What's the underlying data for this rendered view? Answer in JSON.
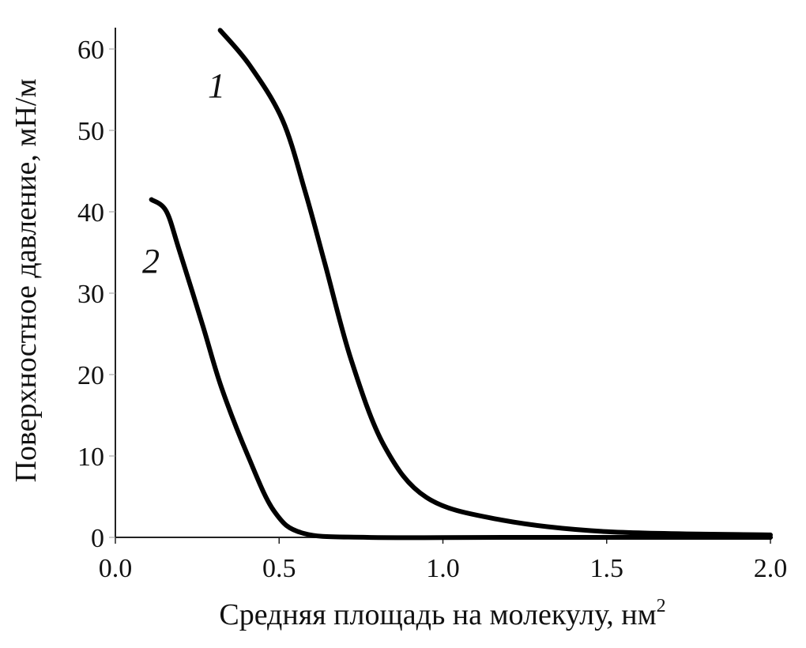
{
  "chart_data": {
    "type": "line",
    "xlabel": "Средняя площадь на молекулу, нм",
    "xlabel_sup": "2",
    "ylabel": "Поверхностное давление, мН/м",
    "xlim": [
      0,
      2.0
    ],
    "ylim": [
      0,
      62
    ],
    "grid": false,
    "x_ticks": [
      "0.0",
      "0.5",
      "1.0",
      "1.5",
      "2.0"
    ],
    "y_ticks": [
      "0",
      "10",
      "20",
      "30",
      "40",
      "50",
      "60"
    ],
    "line_color": "#000000",
    "series": [
      {
        "name": "1",
        "points": [
          [
            0.32,
            62.3
          ],
          [
            0.41,
            58.0
          ],
          [
            0.51,
            51.3
          ],
          [
            0.58,
            42.4
          ],
          [
            0.64,
            33.6
          ],
          [
            0.72,
            21.8
          ],
          [
            0.82,
            11.3
          ],
          [
            0.95,
            4.9
          ],
          [
            1.17,
            2.2
          ],
          [
            1.5,
            0.7
          ],
          [
            2.0,
            0.3
          ]
        ]
      },
      {
        "name": "2",
        "points": [
          [
            0.11,
            41.5
          ],
          [
            0.155,
            40.1
          ],
          [
            0.195,
            35.3
          ],
          [
            0.267,
            26.0
          ],
          [
            0.324,
            18.4
          ],
          [
            0.405,
            10.0
          ],
          [
            0.485,
            3.2
          ],
          [
            0.574,
            0.5
          ],
          [
            0.77,
            0.0
          ],
          [
            1.2,
            0.0
          ],
          [
            2.0,
            0.0
          ]
        ]
      }
    ]
  }
}
